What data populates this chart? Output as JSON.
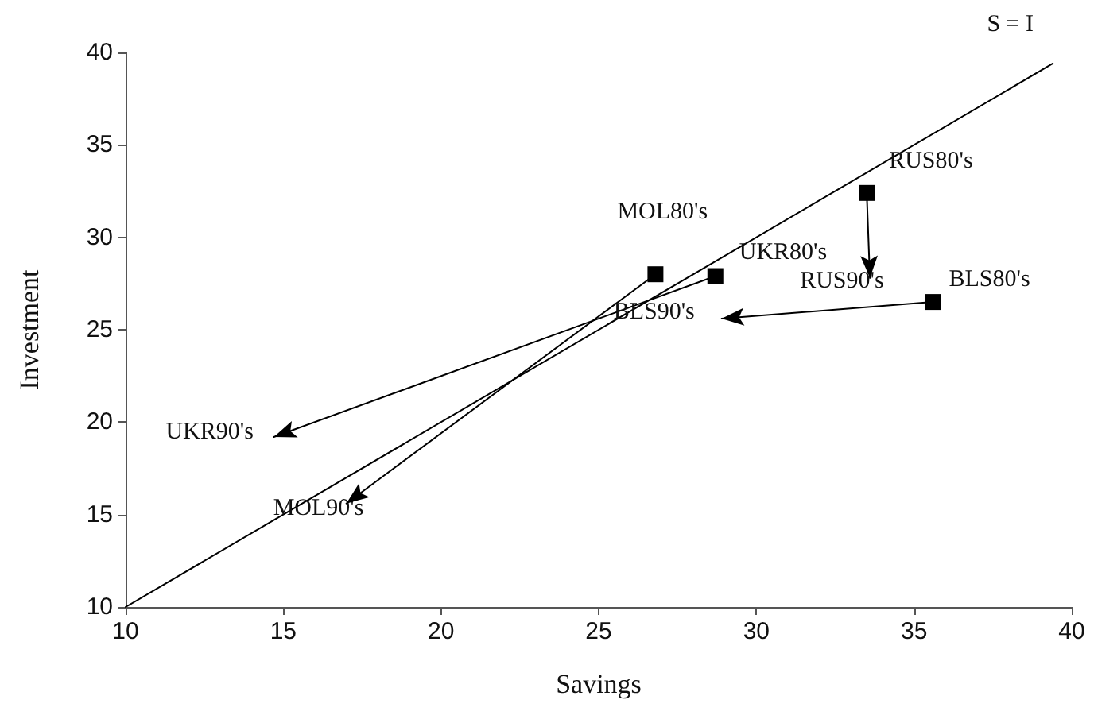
{
  "chart_data": {
    "type": "line",
    "xlabel": "Savings",
    "ylabel": "Investment",
    "xlim": [
      10,
      40
    ],
    "xticks": [
      10,
      15,
      20,
      25,
      30,
      35,
      40
    ],
    "ylim": [
      10,
      40
    ],
    "yticks": [
      10,
      15,
      20,
      25,
      30,
      35,
      40
    ],
    "grid": false,
    "marker": "square",
    "series": [
      {
        "color": "#000000",
        "marker": "none",
        "x": [
          10,
          39.4
        ],
        "values": [
          10,
          39.4
        ]
      },
      {
        "color": "#000000",
        "x": [
          26.8,
          17.0
        ],
        "values": [
          28.0,
          15.6
        ]
      },
      {
        "color": "#000000",
        "x": [
          28.7,
          14.7
        ],
        "values": [
          27.9,
          19.2
        ]
      },
      {
        "color": "#000000",
        "x": [
          33.5,
          33.6
        ],
        "values": [
          32.4,
          27.8
        ]
      },
      {
        "color": "#000000",
        "x": [
          35.6,
          28.9
        ],
        "values": [
          26.5,
          25.6
        ]
      }
    ],
    "annotations": [
      {
        "text": "MOL80's",
        "x": 26.8,
        "y": 28.0
      },
      {
        "text": "UKR80's",
        "x": 28.7,
        "y": 27.9
      },
      {
        "text": "RUS80's",
        "x": 33.5,
        "y": 32.4
      },
      {
        "text": "BLS80's",
        "x": 35.6,
        "y": 26.5
      },
      {
        "text": "MOL90's",
        "x": 17.0,
        "y": 15.6
      },
      {
        "text": "UKR90's",
        "x": 14.7,
        "y": 19.2
      },
      {
        "text": "RUS90's",
        "x": 33.6,
        "y": 27.8
      },
      {
        "text": "BLS90's",
        "x": 28.9,
        "y": 25.6
      },
      "S = I"
    ]
  }
}
